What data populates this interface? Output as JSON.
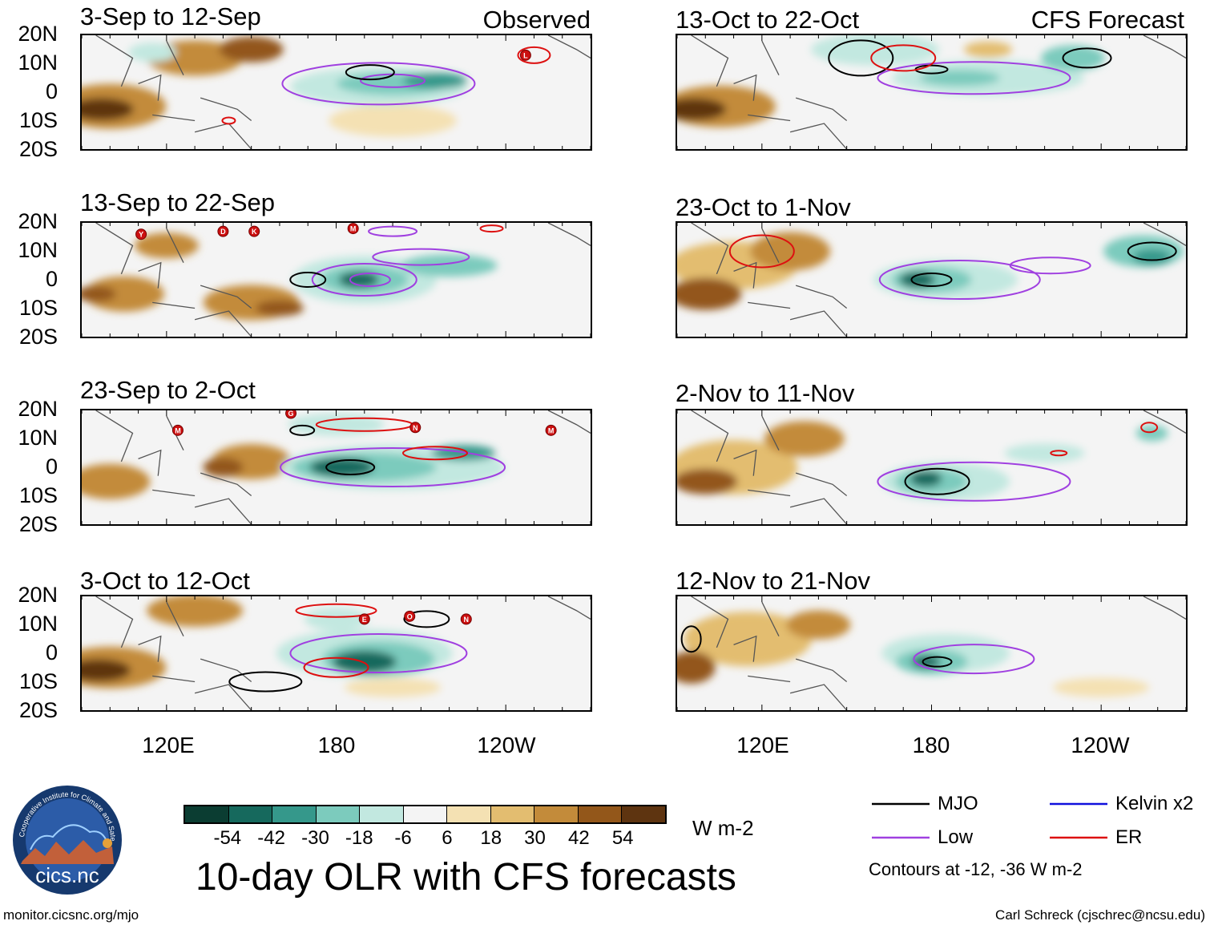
{
  "figure": {
    "title": "10-day OLR with CFS forecasts",
    "units": "W m-2",
    "observed_label": "Observed",
    "forecast_label": "CFS Forecast",
    "contour_note": "Contours at -12, -36 W m-2",
    "footer_left": "monitor.cicsnc.org/mjo",
    "footer_right": "Carl Schreck (cjschrec@ncsu.edu)",
    "logo_text": "cics.nc",
    "logo_ring_text": "Cooperative Institute for Climate and Satellites"
  },
  "axes": {
    "lat_labels": [
      "20N",
      "10N",
      "0",
      "10S",
      "20S"
    ],
    "lon_labels": [
      "120E",
      "180",
      "120W"
    ]
  },
  "colorbar": {
    "labels": [
      "-54",
      "-42",
      "-30",
      "-18",
      "-6",
      "6",
      "18",
      "30",
      "42",
      "54"
    ],
    "colors": [
      "#0b3d32",
      "#16695d",
      "#35988b",
      "#7ccbbd",
      "#c2e8e0",
      "#f4f4f4",
      "#f4e1b3",
      "#e3bd70",
      "#c38b3a",
      "#93571a",
      "#5e3410"
    ]
  },
  "legend": {
    "items": [
      {
        "label": "MJO",
        "color": "#000000"
      },
      {
        "label": "Kelvin x2",
        "color": "#1010dd"
      },
      {
        "label": "Low",
        "color": "#a040e0"
      },
      {
        "label": "ER",
        "color": "#dd1010"
      }
    ]
  },
  "chart_data": {
    "type": "heatmap",
    "variable": "10-day mean OLR anomaly with contours of filtered OLR",
    "lat_range": [
      -20,
      20
    ],
    "lon_range": [
      90,
      270
    ],
    "contour_levels": [
      -12,
      -36
    ],
    "panels": [
      {
        "title": "3-Sep to 12-Sep",
        "tag": "Observed",
        "source": "observed",
        "storms": [
          {
            "letter": "L",
            "lon": 247,
            "lat": 13
          }
        ]
      },
      {
        "title": "13-Sep to 22-Sep",
        "tag": "",
        "source": "observed",
        "storms": [
          {
            "letter": "Y",
            "lon": 111,
            "lat": 16
          },
          {
            "letter": "D",
            "lon": 140,
            "lat": 17
          },
          {
            "letter": "K",
            "lon": 151,
            "lat": 17
          },
          {
            "letter": "M",
            "lon": 186,
            "lat": 18
          }
        ]
      },
      {
        "title": "23-Sep to 2-Oct",
        "tag": "",
        "source": "observed",
        "storms": [
          {
            "letter": "M",
            "lon": 124,
            "lat": 13
          },
          {
            "letter": "G",
            "lon": 164,
            "lat": 19
          },
          {
            "letter": "N",
            "lon": 208,
            "lat": 14
          },
          {
            "letter": "M",
            "lon": 256,
            "lat": 13
          }
        ]
      },
      {
        "title": "3-Oct to 12-Oct",
        "tag": "",
        "source": "observed",
        "storms": [
          {
            "letter": "E",
            "lon": 190,
            "lat": 12
          },
          {
            "letter": "O",
            "lon": 206,
            "lat": 13
          },
          {
            "letter": "N",
            "lon": 226,
            "lat": 12
          }
        ]
      },
      {
        "title": "13-Oct to 22-Oct",
        "tag": "CFS Forecast",
        "source": "forecast",
        "storms": []
      },
      {
        "title": "23-Oct to 1-Nov",
        "tag": "",
        "source": "forecast",
        "storms": []
      },
      {
        "title": "2-Nov to 11-Nov",
        "tag": "",
        "source": "forecast",
        "storms": []
      },
      {
        "title": "12-Nov to 21-Nov",
        "tag": "",
        "source": "forecast",
        "storms": []
      }
    ]
  }
}
